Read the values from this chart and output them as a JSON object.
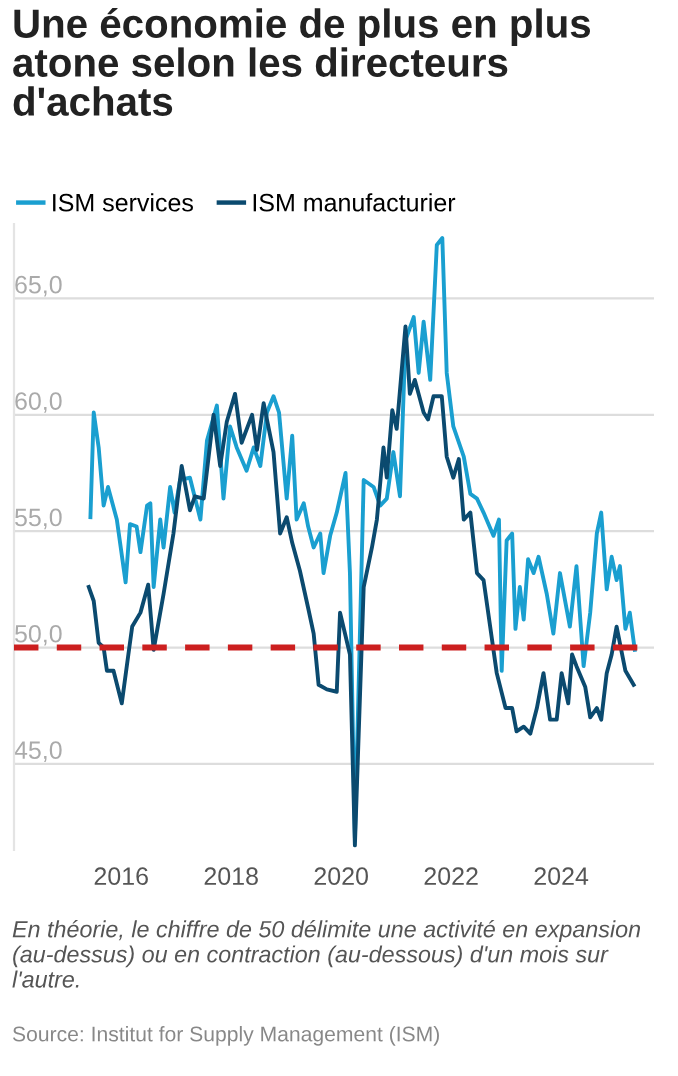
{
  "chart_data": {
    "type": "line",
    "title": "Une économie de plus en plus atone selon les directeurs d'achats",
    "series": [
      {
        "name": "ISM services",
        "color": "#1a9fd0",
        "x": [
          2015.44,
          2015.5,
          2015.59,
          2015.68,
          2015.76,
          2015.92,
          2016.08,
          2016.16,
          2016.28,
          2016.35,
          2016.47,
          2016.53,
          2016.59,
          2016.71,
          2016.77,
          2016.89,
          2016.97,
          2017.07,
          2017.25,
          2017.44,
          2017.56,
          2017.74,
          2017.86,
          2017.98,
          2018.1,
          2018.28,
          2018.41,
          2018.53,
          2018.65,
          2018.77,
          2018.87,
          2019.01,
          2019.11,
          2019.19,
          2019.32,
          2019.4,
          2019.5,
          2019.62,
          2019.68,
          2019.8,
          2019.92,
          2020.08,
          2020.16,
          2020.25,
          2020.41,
          2020.59,
          2020.71,
          2020.83,
          2020.95,
          2021.07,
          2021.17,
          2021.32,
          2021.41,
          2021.5,
          2021.62,
          2021.74,
          2021.84,
          2021.92,
          2022.04,
          2022.23,
          2022.35,
          2022.47,
          2022.59,
          2022.77,
          2022.87,
          2022.92,
          2023.01,
          2023.11,
          2023.17,
          2023.25,
          2023.32,
          2023.4,
          2023.5,
          2023.59,
          2023.74,
          2023.86,
          2023.98,
          2024.16,
          2024.28,
          2024.41,
          2024.53,
          2024.65,
          2024.73,
          2024.83,
          2024.92,
          2025.01,
          2025.07,
          2025.17,
          2025.25,
          2025.34
        ],
        "values": [
          55.6,
          60.1,
          58.6,
          56.1,
          56.9,
          55.5,
          52.8,
          55.3,
          55.2,
          54.1,
          56.1,
          56.2,
          52.6,
          55.5,
          54.3,
          56.9,
          55.8,
          57.2,
          57.3,
          55.5,
          58.9,
          60.4,
          56.4,
          59.5,
          58.6,
          57.6,
          58.6,
          57.8,
          60.1,
          60.8,
          60.1,
          56.4,
          59.1,
          55.5,
          56.2,
          55.2,
          54.3,
          54.9,
          53.2,
          54.8,
          55.8,
          57.5,
          53.2,
          41.8,
          57.2,
          56.9,
          56.1,
          56.4,
          58.4,
          56.5,
          63.2,
          64.2,
          61.8,
          64.0,
          61.5,
          67.3,
          67.6,
          61.8,
          59.5,
          58.2,
          56.6,
          56.4,
          55.8,
          54.8,
          55.5,
          49.0,
          54.6,
          54.9,
          50.8,
          52.6,
          51.2,
          53.8,
          53.2,
          53.9,
          52.3,
          50.6,
          53.2,
          50.9,
          53.5,
          49.2,
          51.5,
          54.9,
          55.8,
          52.5,
          53.9,
          52.9,
          53.5,
          50.8,
          51.5,
          49.9
        ]
      },
      {
        "name": "ISM manufacturier",
        "color": "#0b4a6f",
        "x": [
          2015.41,
          2015.5,
          2015.59,
          2015.68,
          2015.74,
          2015.86,
          2016.01,
          2016.13,
          2016.2,
          2016.35,
          2016.49,
          2016.59,
          2016.77,
          2016.95,
          2017.1,
          2017.25,
          2017.34,
          2017.5,
          2017.68,
          2017.8,
          2017.92,
          2018.07,
          2018.19,
          2018.38,
          2018.47,
          2018.59,
          2018.77,
          2018.89,
          2019.01,
          2019.11,
          2019.25,
          2019.4,
          2019.5,
          2019.59,
          2019.74,
          2019.92,
          2019.98,
          2020.16,
          2020.25,
          2020.41,
          2020.56,
          2020.65,
          2020.77,
          2020.83,
          2020.93,
          2021.01,
          2021.17,
          2021.25,
          2021.34,
          2021.5,
          2021.58,
          2021.68,
          2021.83,
          2021.92,
          2022.04,
          2022.14,
          2022.23,
          2022.35,
          2022.47,
          2022.59,
          2022.71,
          2022.83,
          2022.99,
          2023.11,
          2023.19,
          2023.32,
          2023.44,
          2023.56,
          2023.68,
          2023.8,
          2023.92,
          2024.01,
          2024.13,
          2024.2,
          2024.28,
          2024.44,
          2024.53,
          2024.65,
          2024.73,
          2024.83,
          2024.92,
          2025.01,
          2025.17,
          2025.32
        ],
        "values": [
          52.6,
          52.0,
          50.2,
          50.0,
          49.0,
          49.0,
          47.6,
          49.7,
          50.9,
          51.5,
          52.7,
          49.9,
          52.3,
          54.9,
          57.8,
          55.9,
          56.5,
          56.4,
          60.0,
          57.8,
          59.7,
          60.9,
          58.8,
          60.0,
          58.5,
          60.5,
          58.4,
          54.9,
          55.6,
          54.5,
          53.3,
          51.7,
          50.6,
          48.4,
          48.2,
          48.1,
          51.5,
          49.7,
          41.5,
          52.6,
          54.3,
          55.5,
          58.6,
          57.3,
          60.2,
          59.4,
          63.8,
          60.9,
          61.5,
          60.1,
          59.8,
          60.8,
          60.8,
          58.2,
          57.3,
          58.1,
          55.5,
          55.8,
          53.2,
          52.9,
          50.9,
          48.9,
          47.4,
          47.4,
          46.4,
          46.6,
          46.3,
          47.4,
          48.9,
          46.9,
          46.9,
          48.9,
          47.6,
          49.7,
          49.2,
          48.3,
          47.0,
          47.4,
          46.9,
          48.9,
          49.7,
          50.9,
          49.0,
          48.4
        ]
      }
    ],
    "xlim": [
      2014.05,
      2025.69
    ],
    "xticks": [
      2016,
      2018,
      2020,
      2022,
      2024
    ],
    "ylim": [
      41.3,
      68.2
    ],
    "yticks": [
      {
        "value": 45,
        "label": "45,0"
      },
      {
        "value": 50,
        "label": "50,0"
      },
      {
        "value": 55,
        "label": "55,0"
      },
      {
        "value": 60,
        "label": "60,0"
      },
      {
        "value": 65,
        "label": "65,0"
      }
    ],
    "grid": "y",
    "legend": "top left",
    "marker": "none",
    "line_style": "solid",
    "ref_lines": [
      {
        "axis": "y",
        "value": 50,
        "color": "#cc1f1f",
        "line_style": "dashed"
      }
    ],
    "annotations": [
      "En théorie, le chiffre de 50 délimite une activité en expansion (au-dessus) ou en contraction (au-dessous) d'un mois sur l'autre.",
      "Source: Institut for Supply Management (ISM)"
    ]
  }
}
